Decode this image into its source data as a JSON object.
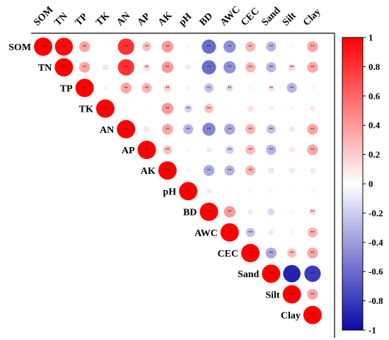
{
  "chart_data": {
    "type": "heatmap",
    "subtype": "correlation-circle-upper-triangle",
    "variables": [
      "SOM",
      "TN",
      "TP",
      "TK",
      "AN",
      "AP",
      "AK",
      "pH",
      "BD",
      "AWC",
      "CEC",
      "Sand",
      "Silt",
      "Clay"
    ],
    "matrix": [
      [
        1,
        0.96,
        0.35,
        0.02,
        0.8,
        0.25,
        0.4,
        0.05,
        -0.6,
        -0.45,
        0.3,
        -0.3,
        0.03,
        0.35
      ],
      [
        0.96,
        1,
        0.35,
        -0.1,
        0.8,
        0.15,
        0.4,
        -0.08,
        -0.6,
        -0.45,
        0.3,
        -0.3,
        0.15,
        0.35
      ],
      [
        0.35,
        0.35,
        1,
        0.05,
        0.35,
        0.3,
        0.18,
        0.05,
        -0.25,
        -0.15,
        0.05,
        0.12,
        -0.3,
        0.05
      ],
      [
        0.02,
        -0.1,
        0.05,
        1,
        0.02,
        0.02,
        0.4,
        -0.18,
        0.25,
        0.03,
        0.12,
        0.08,
        0.05,
        0.1
      ],
      [
        0.8,
        0.8,
        0.35,
        0.02,
        1,
        0.1,
        0.35,
        -0.3,
        -0.5,
        -0.35,
        0.3,
        -0.25,
        0.1,
        0.35
      ],
      [
        0.25,
        0.15,
        0.3,
        0.02,
        0.1,
        1,
        0.25,
        0.05,
        -0.08,
        -0.2,
        0.28,
        -0.3,
        0.1,
        0.35
      ],
      [
        0.4,
        0.4,
        0.18,
        0.4,
        0.35,
        0.25,
        1,
        0.05,
        -0.35,
        -0.3,
        0.3,
        -0.1,
        0.1,
        0.1
      ],
      [
        0.05,
        -0.08,
        0.05,
        -0.18,
        -0.3,
        0.05,
        0.05,
        1,
        -0.08,
        0.03,
        -0.05,
        -0.05,
        0.03,
        0.05
      ],
      [
        -0.6,
        -0.6,
        -0.25,
        0.25,
        -0.5,
        -0.08,
        -0.35,
        -0.08,
        1,
        0.4,
        -0.08,
        -0.15,
        0.03,
        0.15
      ],
      [
        -0.45,
        -0.45,
        -0.15,
        0.03,
        -0.35,
        -0.2,
        -0.3,
        0.03,
        0.4,
        1,
        -0.25,
        -0.08,
        0.05,
        0.3
      ],
      [
        0.3,
        0.3,
        0.05,
        0.12,
        0.3,
        0.28,
        0.3,
        -0.05,
        -0.08,
        -0.25,
        1,
        -0.35,
        0.25,
        0.35
      ],
      [
        -0.3,
        -0.3,
        0.12,
        0.08,
        -0.25,
        -0.3,
        -0.1,
        -0.05,
        -0.15,
        -0.08,
        -0.35,
        1,
        -0.9,
        -0.8
      ],
      [
        0.03,
        0.15,
        -0.3,
        0.05,
        0.1,
        0.1,
        0.1,
        0.03,
        0.03,
        0.05,
        0.25,
        -0.9,
        1,
        0.35
      ],
      [
        0.35,
        0.35,
        0.05,
        0.1,
        0.35,
        0.35,
        0.1,
        0.05,
        0.15,
        0.3,
        0.35,
        -0.8,
        0.35,
        1
      ]
    ],
    "significance_label": "**",
    "significant": [
      [
        "SOM",
        "TN"
      ],
      [
        "SOM",
        "TP"
      ],
      [
        "SOM",
        "AN"
      ],
      [
        "SOM",
        "AP"
      ],
      [
        "SOM",
        "AK"
      ],
      [
        "SOM",
        "BD"
      ],
      [
        "SOM",
        "AWC"
      ],
      [
        "SOM",
        "CEC"
      ],
      [
        "SOM",
        "Sand"
      ],
      [
        "SOM",
        "Clay"
      ],
      [
        "TN",
        "TP"
      ],
      [
        "TN",
        "AN"
      ],
      [
        "TN",
        "AP"
      ],
      [
        "TN",
        "AK"
      ],
      [
        "TN",
        "BD"
      ],
      [
        "TN",
        "AWC"
      ],
      [
        "TN",
        "CEC"
      ],
      [
        "TN",
        "Sand"
      ],
      [
        "TN",
        "Silt"
      ],
      [
        "TN",
        "Clay"
      ],
      [
        "TP",
        "AN"
      ],
      [
        "TP",
        "AP"
      ],
      [
        "TP",
        "AK"
      ],
      [
        "TP",
        "BD"
      ],
      [
        "TP",
        "AWC"
      ],
      [
        "TP",
        "Sand"
      ],
      [
        "TP",
        "Silt"
      ],
      [
        "TK",
        "AK"
      ],
      [
        "TK",
        "pH"
      ],
      [
        "TK",
        "BD"
      ],
      [
        "AN",
        "AK"
      ],
      [
        "AN",
        "pH"
      ],
      [
        "AN",
        "BD"
      ],
      [
        "AN",
        "AWC"
      ],
      [
        "AN",
        "CEC"
      ],
      [
        "AN",
        "Sand"
      ],
      [
        "AN",
        "Clay"
      ],
      [
        "AP",
        "AK"
      ],
      [
        "AP",
        "AWC"
      ],
      [
        "AP",
        "CEC"
      ],
      [
        "AP",
        "Sand"
      ],
      [
        "AP",
        "Clay"
      ],
      [
        "AK",
        "BD"
      ],
      [
        "AK",
        "AWC"
      ],
      [
        "AK",
        "CEC"
      ],
      [
        "BD",
        "AWC"
      ],
      [
        "BD",
        "Clay"
      ],
      [
        "AWC",
        "CEC"
      ],
      [
        "AWC",
        "Clay"
      ],
      [
        "CEC",
        "Sand"
      ],
      [
        "CEC",
        "Silt"
      ],
      [
        "CEC",
        "Clay"
      ],
      [
        "Sand",
        "Silt"
      ],
      [
        "Sand",
        "Clay"
      ],
      [
        "Silt",
        "Clay"
      ]
    ],
    "colorbar": {
      "min": -1,
      "max": 1,
      "ticks": [
        "1",
        "0.8",
        "0.6",
        "0.4",
        "0.2",
        "0",
        "-0.2",
        "-0.4",
        "-0.6",
        "-0.8",
        "-1"
      ],
      "colors": {
        "negative": "#0a0aa8",
        "zero": "#ffffff",
        "positive": "#ff0000"
      }
    },
    "grid": false,
    "legend": "right"
  }
}
